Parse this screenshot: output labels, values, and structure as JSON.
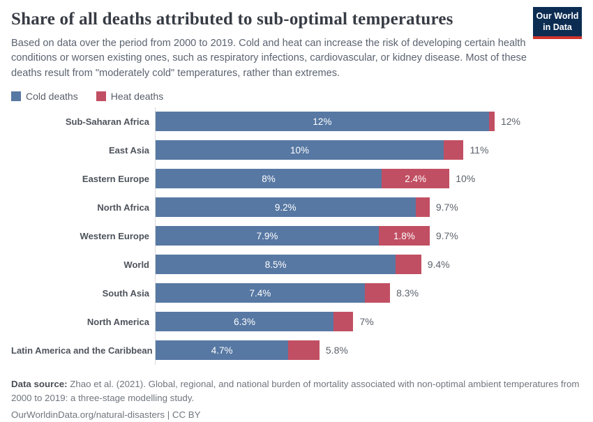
{
  "header": {
    "title": "Share of all deaths attributed to sub-optimal temperatures",
    "subtitle": "Based on data over the period from 2000 to 2019. Cold and heat can increase the risk of developing certain health conditions or worsen existing ones, such as respiratory infections, cardiovascular, or kidney disease. Most of these deaths result from \"moderately cold\" temperatures, rather than extremes.",
    "logo": {
      "line1": "Our World",
      "line2": "in Data",
      "bg_color": "#0c2c52",
      "accent_color": "#d0342c"
    }
  },
  "legend": {
    "items": [
      {
        "label": "Cold deaths",
        "color": "#5778a3"
      },
      {
        "label": "Heat deaths",
        "color": "#c14f63"
      }
    ]
  },
  "chart_data": {
    "type": "bar",
    "variant": "horizontal_stacked",
    "title": "Share of all deaths attributed to sub-optimal temperatures",
    "unit": "%",
    "xlim": [
      0,
      12.5
    ],
    "grid": false,
    "legend_position": "top-left",
    "series_names": [
      "Cold deaths",
      "Heat deaths"
    ],
    "colors": {
      "cold": "#5778a3",
      "heat": "#c14f63"
    },
    "rows": [
      {
        "region": "Sub-Saharan Africa",
        "cold": 11.8,
        "heat": 0.2,
        "cold_label": "12%",
        "heat_label": "",
        "total_label": "12%"
      },
      {
        "region": "East Asia",
        "cold": 10.2,
        "heat": 0.7,
        "cold_label": "10%",
        "heat_label": "",
        "total_label": "11%"
      },
      {
        "region": "Eastern Europe",
        "cold": 8.0,
        "heat": 2.4,
        "cold_label": "8%",
        "heat_label": "2.4%",
        "total_label": "10%"
      },
      {
        "region": "North Africa",
        "cold": 9.2,
        "heat": 0.5,
        "cold_label": "9.2%",
        "heat_label": "",
        "total_label": "9.7%"
      },
      {
        "region": "Western Europe",
        "cold": 7.9,
        "heat": 1.8,
        "cold_label": "7.9%",
        "heat_label": "1.8%",
        "total_label": "9.7%"
      },
      {
        "region": "World",
        "cold": 8.5,
        "heat": 0.9,
        "cold_label": "8.5%",
        "heat_label": "",
        "total_label": "9.4%"
      },
      {
        "region": "South Asia",
        "cold": 7.4,
        "heat": 0.9,
        "cold_label": "7.4%",
        "heat_label": "",
        "total_label": "8.3%"
      },
      {
        "region": "North America",
        "cold": 6.3,
        "heat": 0.7,
        "cold_label": "6.3%",
        "heat_label": "",
        "total_label": "7%"
      },
      {
        "region": "Latin America and the Caribbean",
        "cold": 4.7,
        "heat": 1.1,
        "cold_label": "4.7%",
        "heat_label": "",
        "total_label": "5.8%"
      }
    ]
  },
  "footer": {
    "source_label": "Data source:",
    "source_text": "Zhao et al. (2021). Global, regional, and national burden of mortality associated with non-optimal ambient temperatures from 2000 to 2019: a three-stage modelling study.",
    "link_text": "OurWorldinData.org/natural-disasters",
    "separator": "|",
    "license_text": "CC BY"
  }
}
